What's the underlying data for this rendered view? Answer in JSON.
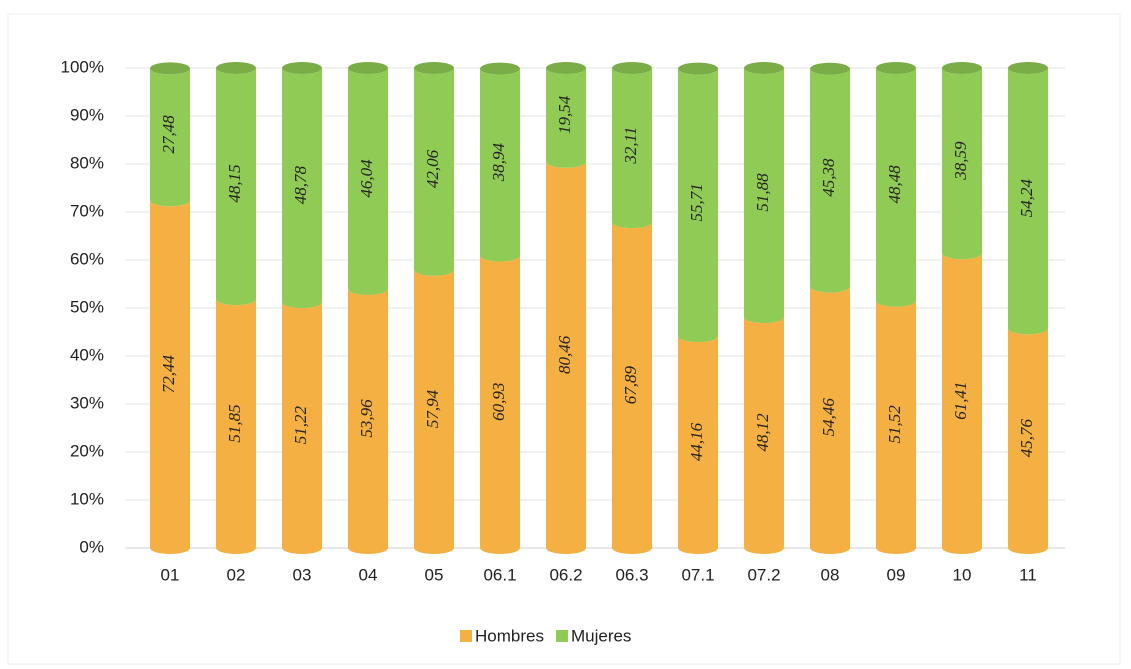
{
  "chart_data": {
    "type": "stacked-cylinder",
    "categories": [
      "01",
      "02",
      "03",
      "04",
      "05",
      "06.1",
      "06.2",
      "06.3",
      "07.1",
      "07.2",
      "08",
      "09",
      "10",
      "11"
    ],
    "series": [
      {
        "name": "Hombres",
        "color": "#f4b042",
        "values": [
          72.44,
          51.85,
          51.22,
          53.96,
          57.94,
          60.93,
          80.46,
          67.89,
          44.16,
          48.12,
          54.46,
          51.52,
          61.41,
          45.76
        ],
        "value_labels": [
          "72,44",
          "51,85",
          "51,22",
          "53,96",
          "57,94",
          "60,93",
          "80,46",
          "67,89",
          "44,16",
          "48,12",
          "54,46",
          "51,52",
          "61,41",
          "45,76"
        ]
      },
      {
        "name": "Mujeres",
        "color": "#8fcb55",
        "values": [
          27.48,
          48.15,
          48.78,
          46.04,
          42.06,
          38.94,
          19.54,
          32.11,
          55.71,
          51.88,
          45.38,
          48.48,
          38.59,
          54.24
        ],
        "value_labels": [
          "27,48",
          "48,15",
          "48,78",
          "46,04",
          "42,06",
          "38,94",
          "19,54",
          "32,11",
          "55,71",
          "51,88",
          "45,38",
          "48,48",
          "38,59",
          "54,24"
        ]
      }
    ],
    "ylim": [
      0,
      100
    ],
    "yticks": [
      {
        "value": 0,
        "label": "0%"
      },
      {
        "value": 10,
        "label": "10%"
      },
      {
        "value": 20,
        "label": "20%"
      },
      {
        "value": 30,
        "label": "30%"
      },
      {
        "value": 40,
        "label": "40%"
      },
      {
        "value": 50,
        "label": "50%"
      },
      {
        "value": 60,
        "label": "60%"
      },
      {
        "value": 70,
        "label": "70%"
      },
      {
        "value": 80,
        "label": "80%"
      },
      {
        "value": 90,
        "label": "90%"
      },
      {
        "value": 100,
        "label": "100%"
      }
    ],
    "grid": true,
    "legend": "bottom"
  }
}
